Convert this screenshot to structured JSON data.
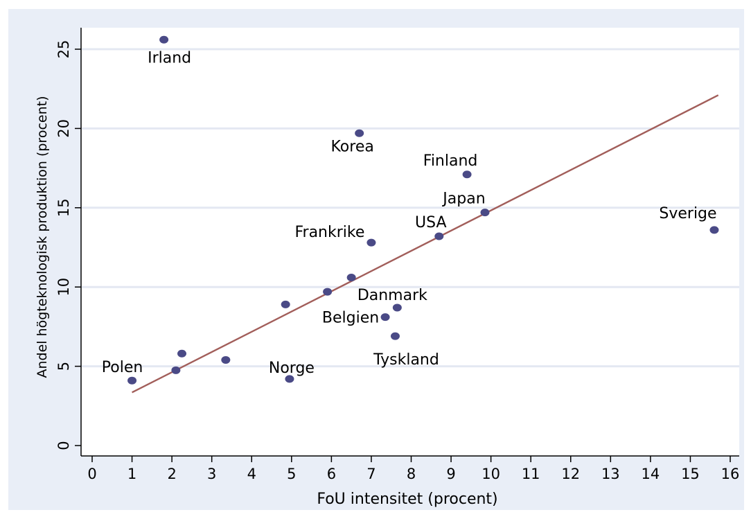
{
  "chart_data": {
    "type": "scatter",
    "title": "",
    "xlabel": "FoU intensitet (procent)",
    "ylabel": "Andel högteknologisk produktion (procent)",
    "xlim": [
      0,
      16
    ],
    "ylim": [
      0,
      25
    ],
    "xticks": [
      "0",
      "1",
      "2",
      "3",
      "4",
      "5",
      "6",
      "7",
      "8",
      "9",
      "10",
      "11",
      "12",
      "13",
      "14",
      "15",
      "16"
    ],
    "yticks": [
      "0",
      "5",
      "10",
      "15",
      "20",
      "25"
    ],
    "grid": "horizontal",
    "legend": "none",
    "colors": {
      "outer_background": "#e9eef7",
      "plot_background": "#ffffff",
      "grid": "#e4e8f2",
      "point": "#4a4a86",
      "fit_line": "#a25e5a",
      "axis": "#000000"
    },
    "points": [
      {
        "x": 1.8,
        "y": 25.6,
        "label": "Irland"
      },
      {
        "x": 6.7,
        "y": 19.7,
        "label": "Korea"
      },
      {
        "x": 9.4,
        "y": 17.1,
        "label": "Finland"
      },
      {
        "x": 9.85,
        "y": 14.7,
        "label": "Japan"
      },
      {
        "x": 8.7,
        "y": 13.2,
        "label": "USA"
      },
      {
        "x": 15.6,
        "y": 13.6,
        "label": "Sverige"
      },
      {
        "x": 7.0,
        "y": 12.8,
        "label": "Frankrike"
      },
      {
        "x": 6.5,
        "y": 10.6,
        "label": ""
      },
      {
        "x": 5.9,
        "y": 9.7,
        "label": ""
      },
      {
        "x": 4.85,
        "y": 8.9,
        "label": ""
      },
      {
        "x": 7.65,
        "y": 8.7,
        "label": "Danmark"
      },
      {
        "x": 7.35,
        "y": 8.1,
        "label": "Belgien"
      },
      {
        "x": 7.6,
        "y": 6.9,
        "label": "Tyskland"
      },
      {
        "x": 2.25,
        "y": 5.8,
        "label": ""
      },
      {
        "x": 3.35,
        "y": 5.4,
        "label": ""
      },
      {
        "x": 2.1,
        "y": 4.75,
        "label": ""
      },
      {
        "x": 1.0,
        "y": 4.1,
        "label": "Polen"
      },
      {
        "x": 4.95,
        "y": 4.2,
        "label": "Norge"
      }
    ],
    "fit_line": {
      "x": [
        1.0,
        15.7
      ],
      "y": [
        3.35,
        22.1
      ]
    }
  }
}
